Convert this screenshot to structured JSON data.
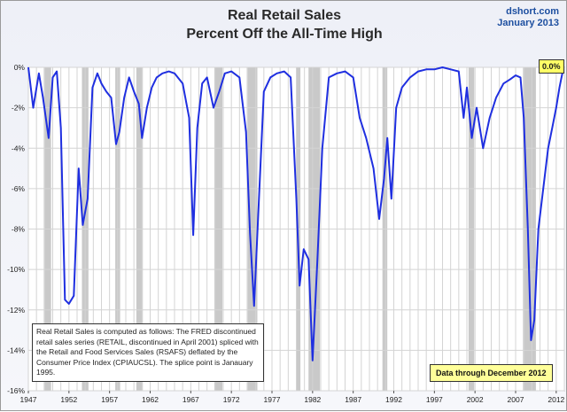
{
  "chart_data": {
    "type": "line",
    "title": "Real Retail Sales",
    "subtitle": "Percent Off the All-Time High",
    "source": "dshort.com",
    "date_label": "January 2013",
    "xlim": [
      1947,
      2013
    ],
    "ylim": [
      -16,
      0
    ],
    "y_ticks": [
      "0%",
      "-2%",
      "-4%",
      "-6%",
      "-8%",
      "-10%",
      "-12%",
      "-14%",
      "-16%"
    ],
    "x_ticks": [
      "1947",
      "1952",
      "1957",
      "1962",
      "1967",
      "1972",
      "1977",
      "1982",
      "1987",
      "1992",
      "1997",
      "2002",
      "2007",
      "2012"
    ],
    "grid": true,
    "series": [
      {
        "color": "#1f2fe0",
        "x": [
          1947.0,
          1947.6,
          1948.3,
          1948.8,
          1949.5,
          1950.0,
          1950.5,
          1951.0,
          1951.5,
          1952.0,
          1952.6,
          1953.2,
          1953.7,
          1954.3,
          1954.9,
          1955.5,
          1956.0,
          1956.6,
          1957.2,
          1957.8,
          1958.2,
          1958.8,
          1959.4,
          1960.0,
          1960.6,
          1961.0,
          1961.6,
          1962.2,
          1962.8,
          1963.5,
          1964.3,
          1965.0,
          1966.0,
          1966.8,
          1967.3,
          1967.8,
          1968.4,
          1969.0,
          1969.8,
          1970.5,
          1971.2,
          1972.0,
          1973.0,
          1973.8,
          1974.3,
          1974.8,
          1975.4,
          1976.0,
          1976.8,
          1977.6,
          1978.5,
          1979.3,
          1980.0,
          1980.4,
          1980.9,
          1981.5,
          1982.0,
          1982.6,
          1983.2,
          1984.0,
          1985.0,
          1986.0,
          1987.0,
          1987.8,
          1988.6,
          1989.5,
          1990.2,
          1990.8,
          1991.2,
          1991.7,
          1992.3,
          1993.0,
          1994.0,
          1995.0,
          1996.0,
          1997.0,
          1998.0,
          1999.0,
          2000.0,
          2000.6,
          2001.0,
          2001.6,
          2002.2,
          2003.0,
          2003.8,
          2004.6,
          2005.5,
          2006.3,
          2007.0,
          2007.6,
          2008.0,
          2008.5,
          2008.9,
          2009.3,
          2009.8,
          2010.4,
          2011.0,
          2011.5,
          2012.0,
          2012.4,
          2012.9
        ],
        "values": [
          0.0,
          -2.0,
          -0.3,
          -1.5,
          -3.5,
          -0.5,
          -0.2,
          -3.0,
          -11.5,
          -11.7,
          -11.3,
          -5.0,
          -7.8,
          -6.5,
          -1.0,
          -0.3,
          -0.8,
          -1.2,
          -1.5,
          -3.8,
          -3.2,
          -1.5,
          -0.5,
          -1.2,
          -1.8,
          -3.5,
          -2.0,
          -1.0,
          -0.5,
          -0.3,
          -0.2,
          -0.3,
          -0.8,
          -2.5,
          -8.3,
          -3.0,
          -0.8,
          -0.5,
          -2.0,
          -1.2,
          -0.3,
          -0.2,
          -0.5,
          -3.2,
          -8.2,
          -11.8,
          -6.5,
          -1.2,
          -0.5,
          -0.3,
          -0.2,
          -0.5,
          -6.5,
          -10.8,
          -9.0,
          -9.5,
          -14.5,
          -9.5,
          -4.0,
          -0.5,
          -0.3,
          -0.2,
          -0.5,
          -2.5,
          -3.5,
          -5.0,
          -7.5,
          -5.5,
          -3.5,
          -6.5,
          -2.0,
          -1.0,
          -0.5,
          -0.2,
          -0.1,
          -0.1,
          0.0,
          -0.1,
          -0.2,
          -2.5,
          -1.0,
          -3.5,
          -2.0,
          -4.0,
          -2.5,
          -1.5,
          -0.8,
          -0.6,
          -0.4,
          -0.5,
          -2.5,
          -8.0,
          -13.5,
          -12.5,
          -8.0,
          -6.0,
          -4.0,
          -3.0,
          -2.0,
          -1.0,
          0.0
        ]
      }
    ],
    "recessions": [
      [
        1948.9,
        1949.8
      ],
      [
        1953.6,
        1954.4
      ],
      [
        1957.7,
        1958.3
      ],
      [
        1960.3,
        1961.1
      ],
      [
        1969.9,
        1970.9
      ],
      [
        1973.9,
        1975.2
      ],
      [
        1980.0,
        1980.5
      ],
      [
        1981.5,
        1982.9
      ],
      [
        1990.6,
        1991.2
      ],
      [
        2001.2,
        2001.9
      ],
      [
        2007.9,
        2009.5
      ]
    ],
    "last_value_label": "0.0%",
    "annotation": "Real Retail Sales is computed as follows: The FRED discontinued retail sales series (RETAIL, discontinued in April 2001) spliced with the Retail and Food Services Sales (RSAFS) deflated by the Consumer Price Index (CPIAUCSL). The splice point is Janauary 1995.",
    "data_through": "Data through December 2012"
  }
}
